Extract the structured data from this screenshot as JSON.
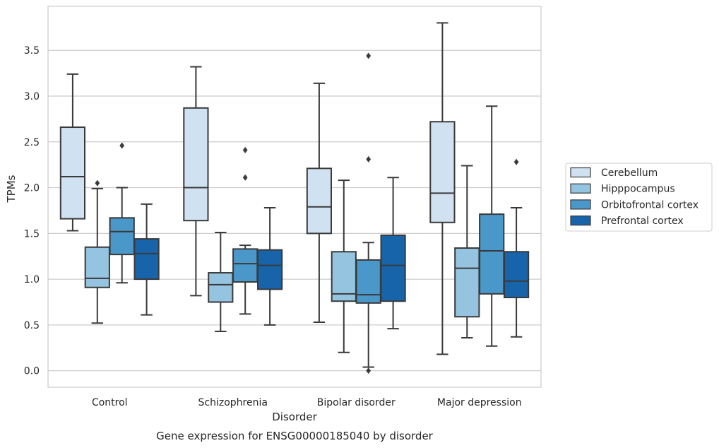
{
  "chart_data": {
    "type": "box",
    "title": "",
    "caption": "Gene expression for ENSG00000185040 by disorder",
    "xlabel": "Disorder",
    "ylabel": "TPMs",
    "ylim": [
      -0.18,
      3.98
    ],
    "yticks": [
      "0.0",
      "0.5",
      "1.0",
      "1.5",
      "2.0",
      "2.5",
      "3.0",
      "3.5"
    ],
    "grid": "horizontal",
    "legend_placement": "right",
    "categories": [
      "Control",
      "Schizophrenia",
      "Bipolar disorder",
      "Major depression"
    ],
    "series": [
      {
        "name": "Cerebellum",
        "color": "#d0e2f2",
        "boxes": [
          {
            "min": 1.53,
            "q1": 1.66,
            "median": 2.12,
            "q3": 2.66,
            "max": 3.24,
            "outliers": []
          },
          {
            "min": 0.82,
            "q1": 1.64,
            "median": 2.0,
            "q3": 2.87,
            "max": 3.32,
            "outliers": []
          },
          {
            "min": 0.53,
            "q1": 1.5,
            "median": 1.79,
            "q3": 2.21,
            "max": 3.14,
            "outliers": []
          },
          {
            "min": 0.18,
            "q1": 1.62,
            "median": 1.94,
            "q3": 2.72,
            "max": 3.8,
            "outliers": []
          }
        ]
      },
      {
        "name": "Hipppocampus",
        "color": "#94c4df",
        "boxes": [
          {
            "min": 0.52,
            "q1": 0.91,
            "median": 1.01,
            "q3": 1.35,
            "max": 1.99,
            "outliers": [
              2.05
            ]
          },
          {
            "min": 0.43,
            "q1": 0.75,
            "median": 0.94,
            "q3": 1.07,
            "max": 1.51,
            "outliers": []
          },
          {
            "min": 0.2,
            "q1": 0.76,
            "median": 0.84,
            "q3": 1.3,
            "max": 2.08,
            "outliers": []
          },
          {
            "min": 0.36,
            "q1": 0.59,
            "median": 1.12,
            "q3": 1.34,
            "max": 2.24,
            "outliers": []
          }
        ]
      },
      {
        "name": "Orbitofrontal cortex",
        "color": "#4a98c9",
        "boxes": [
          {
            "min": 0.96,
            "q1": 1.27,
            "median": 1.52,
            "q3": 1.67,
            "max": 2.0,
            "outliers": [
              2.46
            ]
          },
          {
            "min": 0.62,
            "q1": 0.97,
            "median": 1.17,
            "q3": 1.33,
            "max": 1.37,
            "outliers": [
              2.41,
              2.11
            ]
          },
          {
            "min": 0.04,
            "q1": 0.74,
            "median": 0.83,
            "q3": 1.21,
            "max": 1.4,
            "outliers": [
              3.44,
              2.31,
              0.0
            ]
          },
          {
            "min": 0.27,
            "q1": 0.84,
            "median": 1.31,
            "q3": 1.71,
            "max": 2.89,
            "outliers": []
          }
        ]
      },
      {
        "name": "Prefrontal cortex",
        "color": "#1764ab",
        "boxes": [
          {
            "min": 0.61,
            "q1": 1.0,
            "median": 1.28,
            "q3": 1.44,
            "max": 1.82,
            "outliers": []
          },
          {
            "min": 0.5,
            "q1": 0.89,
            "median": 1.15,
            "q3": 1.32,
            "max": 1.78,
            "outliers": []
          },
          {
            "min": 0.46,
            "q1": 0.76,
            "median": 1.15,
            "q3": 1.48,
            "max": 2.11,
            "outliers": []
          },
          {
            "min": 0.37,
            "q1": 0.8,
            "median": 0.98,
            "q3": 1.3,
            "max": 1.78,
            "outliers": [
              2.28
            ]
          }
        ]
      }
    ]
  }
}
